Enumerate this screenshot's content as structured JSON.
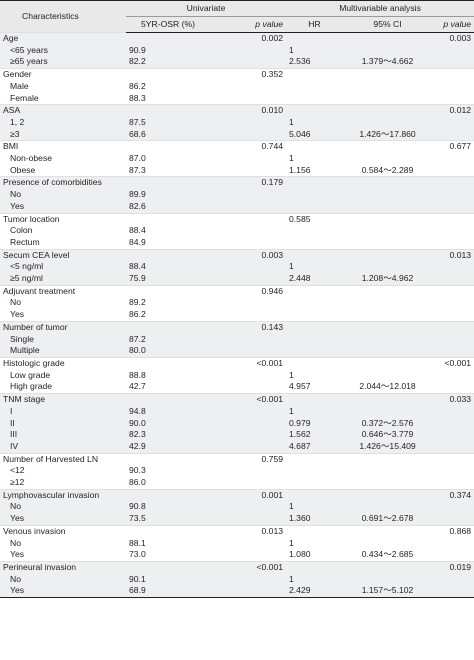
{
  "header": {
    "characteristics": "Characteristics",
    "univariate": "Univariate",
    "multivariable": "Multivariable analysis",
    "col_osr": "5YR-OSR (%)",
    "col_pvalue": "p value",
    "col_hr": "HR",
    "col_ci": "95% CI",
    "col_pvalue2": "p value"
  },
  "groups": [
    {
      "label": "Age",
      "p_uni": "0.002",
      "hr": "",
      "ci": "",
      "p_multi": "0.003",
      "rows": [
        {
          "label": "<65 years",
          "osr": "90.9",
          "hr": "1",
          "ci": ""
        },
        {
          "label": "≥65 years",
          "osr": "82.2",
          "hr": "2.536",
          "ci": "1.379～4.662"
        }
      ]
    },
    {
      "label": "Gender",
      "p_uni": "0.352",
      "hr": "",
      "ci": "",
      "p_multi": "",
      "rows": [
        {
          "label": "Male",
          "osr": "86.2",
          "hr": "",
          "ci": ""
        },
        {
          "label": "Female",
          "osr": "88.3",
          "hr": "",
          "ci": ""
        }
      ]
    },
    {
      "label": "ASA",
      "p_uni": "0.010",
      "hr": "",
      "ci": "",
      "p_multi": "0.012",
      "rows": [
        {
          "label": "1, 2",
          "osr": "87.5",
          "hr": "1",
          "ci": ""
        },
        {
          "label": "≥3",
          "osr": "68.6",
          "hr": "5.046",
          "ci": "1.426～17.860"
        }
      ]
    },
    {
      "label": "BMI",
      "p_uni": "0.744",
      "hr": "",
      "ci": "",
      "p_multi": "0.677",
      "rows": [
        {
          "label": "Non-obese",
          "osr": "87.0",
          "hr": "1",
          "ci": ""
        },
        {
          "label": "Obese",
          "osr": "87.3",
          "hr": "1.156",
          "ci": "0.584～2.289"
        }
      ]
    },
    {
      "label": "Presence of comorbidities",
      "p_uni": "0.179",
      "hr": "",
      "ci": "",
      "p_multi": "",
      "rows": [
        {
          "label": "No",
          "osr": "89.9",
          "hr": "",
          "ci": ""
        },
        {
          "label": "Yes",
          "osr": "82.6",
          "hr": "",
          "ci": ""
        }
      ]
    },
    {
      "label": "Tumor location",
      "p_uni": "",
      "hr": "0.585",
      "ci": "",
      "p_multi": "",
      "rows": [
        {
          "label": "Colon",
          "osr": "88.4",
          "hr": "",
          "ci": ""
        },
        {
          "label": "Rectum",
          "osr": "84.9",
          "hr": "",
          "ci": ""
        }
      ]
    },
    {
      "label": "Secum CEA level",
      "p_uni": "0.003",
      "hr": "",
      "ci": "",
      "p_multi": "0.013",
      "rows": [
        {
          "label": "<5 ng/ml",
          "osr": "88.4",
          "hr": "1",
          "ci": ""
        },
        {
          "label": "≥5 ng/ml",
          "osr": "75.9",
          "hr": "2.448",
          "ci": "1.208～4.962"
        }
      ]
    },
    {
      "label": "Adjuvant treatment",
      "p_uni": "0.946",
      "hr": "",
      "ci": "",
      "p_multi": "",
      "rows": [
        {
          "label": "No",
          "osr": "89.2",
          "hr": "",
          "ci": ""
        },
        {
          "label": "Yes",
          "osr": "86.2",
          "hr": "",
          "ci": ""
        }
      ]
    },
    {
      "label": "Number of tumor",
      "p_uni": "0.143",
      "hr": "",
      "ci": "",
      "p_multi": "",
      "rows": [
        {
          "label": "Single",
          "osr": "87.2",
          "hr": "",
          "ci": ""
        },
        {
          "label": "Multiple",
          "osr": "80.0",
          "hr": "",
          "ci": ""
        }
      ]
    },
    {
      "label": "Histologic grade",
      "p_uni": "<0.001",
      "hr": "",
      "ci": "",
      "p_multi": "<0.001",
      "rows": [
        {
          "label": "Low grade",
          "osr": "88.8",
          "hr": "1",
          "ci": ""
        },
        {
          "label": "High grade",
          "osr": "42.7",
          "hr": "4.957",
          "ci": "2.044～12.018"
        }
      ]
    },
    {
      "label": "TNM stage",
      "p_uni": "<0.001",
      "hr": "",
      "ci": "",
      "p_multi": "0.033",
      "rows": [
        {
          "label": "I",
          "osr": "94.8",
          "hr": "1",
          "ci": ""
        },
        {
          "label": "II",
          "osr": "90.0",
          "hr": "0.979",
          "ci": "0.372～2.576"
        },
        {
          "label": "III",
          "osr": "82.3",
          "hr": "1.562",
          "ci": "0.646～3.779"
        },
        {
          "label": "IV",
          "osr": "42.9",
          "hr": "4.687",
          "ci": "1.426～15.409"
        }
      ]
    },
    {
      "label": "Number of Harvested LN",
      "p_uni": "0.759",
      "hr": "",
      "ci": "",
      "p_multi": "",
      "rows": [
        {
          "label": "<12",
          "osr": "90.3",
          "hr": "",
          "ci": ""
        },
        {
          "label": "≥12",
          "osr": "86.0",
          "hr": "",
          "ci": ""
        }
      ]
    },
    {
      "label": "Lymphovascular invasion",
      "p_uni": "0.001",
      "hr": "",
      "ci": "",
      "p_multi": "0.374",
      "rows": [
        {
          "label": "No",
          "osr": "90.8",
          "hr": "1",
          "ci": ""
        },
        {
          "label": "Yes",
          "osr": "73.5",
          "hr": "1.360",
          "ci": "0.691～2.678"
        }
      ]
    },
    {
      "label": "Venous invasion",
      "p_uni": "0.013",
      "hr": "",
      "ci": "",
      "p_multi": "0.868",
      "rows": [
        {
          "label": "No",
          "osr": "88.1",
          "hr": "1",
          "ci": ""
        },
        {
          "label": "Yes",
          "osr": "73.0",
          "hr": "1.080",
          "ci": "0.434～2.685"
        }
      ]
    },
    {
      "label": "Perineural invasion",
      "p_uni": "<0.001",
      "hr": "",
      "ci": "",
      "p_multi": "0.019",
      "rows": [
        {
          "label": "No",
          "osr": "90.1",
          "hr": "1",
          "ci": ""
        },
        {
          "label": "Yes",
          "osr": "68.9",
          "hr": "2.429",
          "ci": "1.157～5.102"
        }
      ]
    }
  ]
}
